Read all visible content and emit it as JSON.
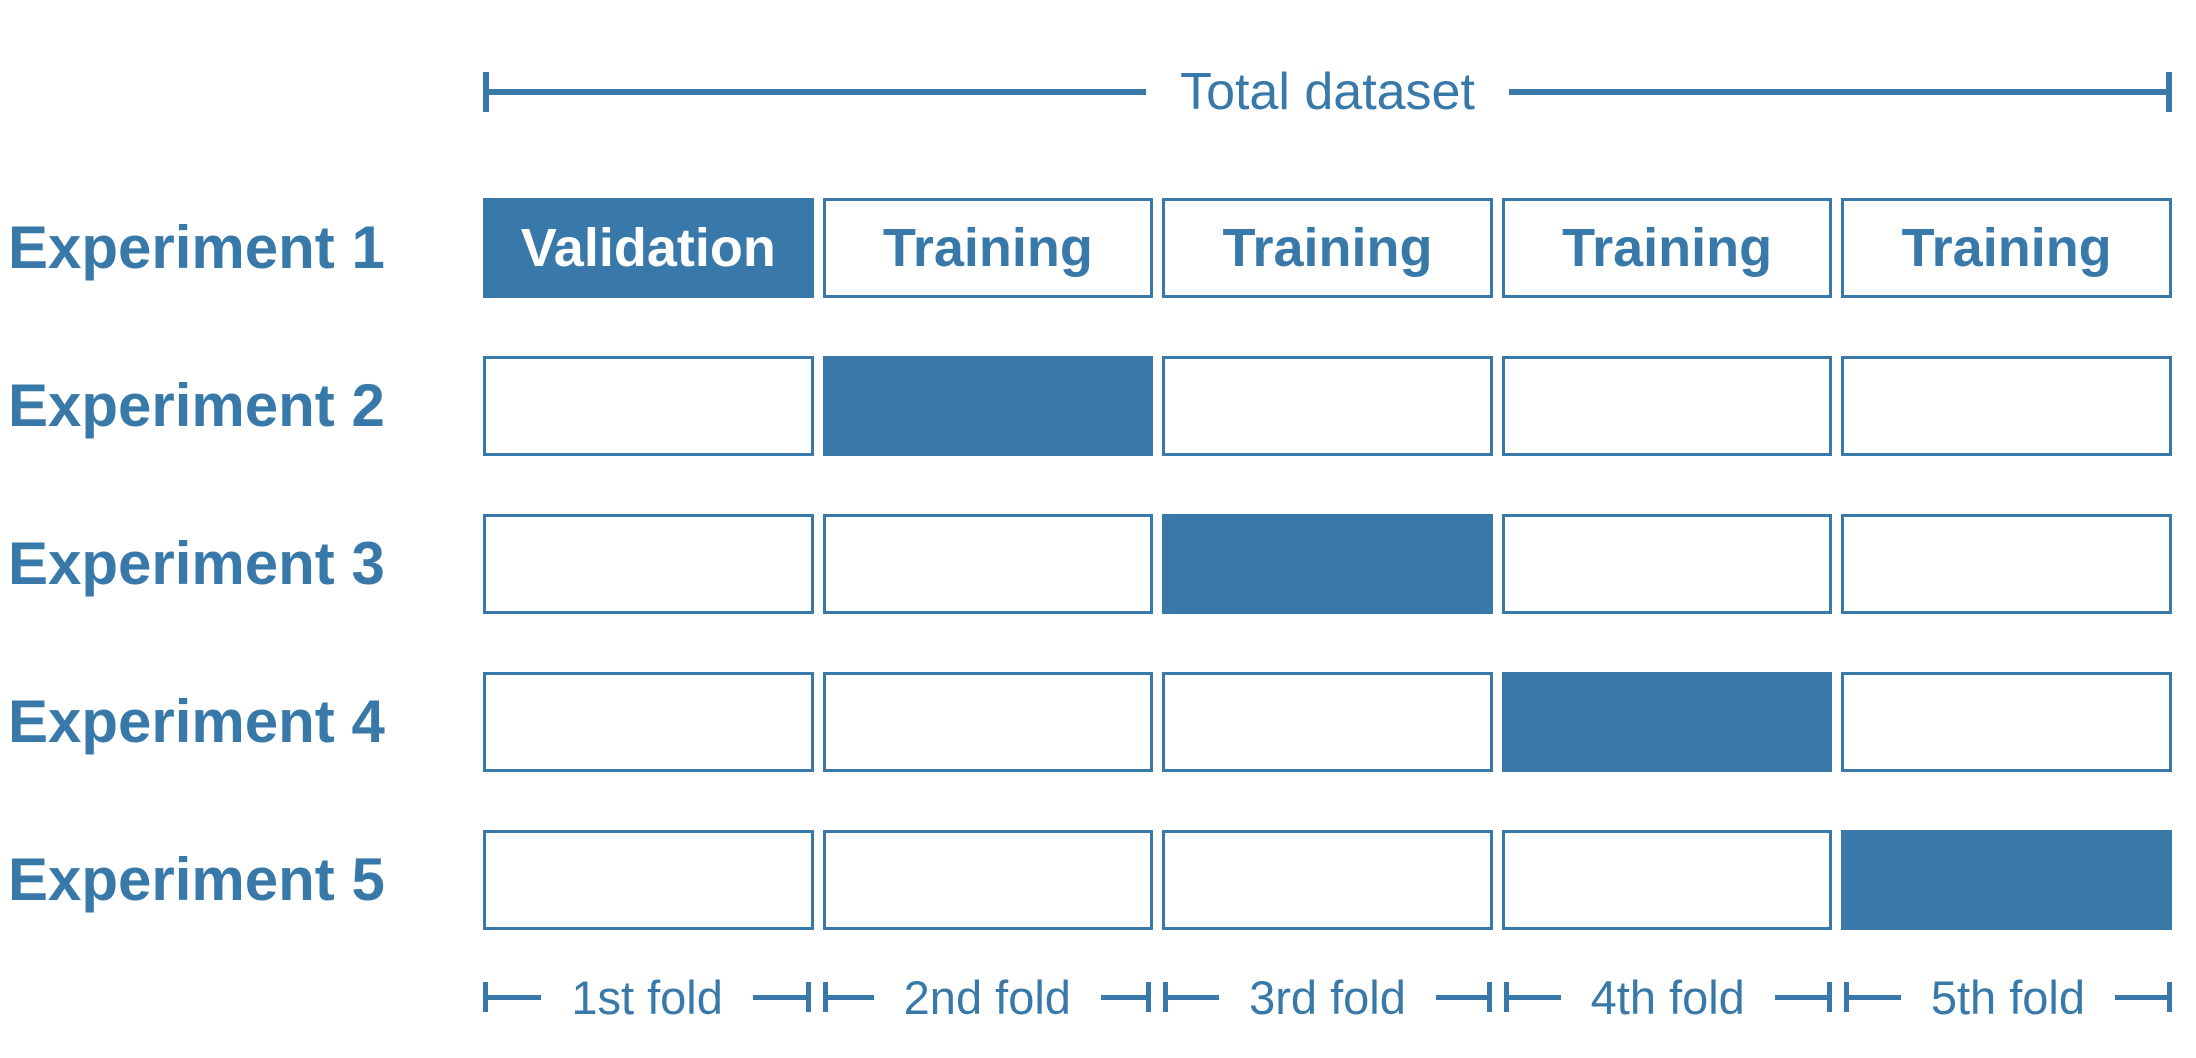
{
  "palette": {
    "accent": "#3879AA",
    "background": "#FFFFFF",
    "text_on_fill": "#FFFFFF"
  },
  "header_bracket": {
    "label": "Total dataset"
  },
  "experiments": [
    {
      "label": "Experiment 1",
      "validation_fold_index": 0,
      "cells": [
        {
          "text": "Validation",
          "filled": true
        },
        {
          "text": "Training",
          "filled": false
        },
        {
          "text": "Training",
          "filled": false
        },
        {
          "text": "Training",
          "filled": false
        },
        {
          "text": "Training",
          "filled": false
        }
      ]
    },
    {
      "label": "Experiment 2",
      "validation_fold_index": 1,
      "cells": [
        {
          "text": "",
          "filled": false
        },
        {
          "text": "",
          "filled": true
        },
        {
          "text": "",
          "filled": false
        },
        {
          "text": "",
          "filled": false
        },
        {
          "text": "",
          "filled": false
        }
      ]
    },
    {
      "label": "Experiment 3",
      "validation_fold_index": 2,
      "cells": [
        {
          "text": "",
          "filled": false
        },
        {
          "text": "",
          "filled": false
        },
        {
          "text": "",
          "filled": true
        },
        {
          "text": "",
          "filled": false
        },
        {
          "text": "",
          "filled": false
        }
      ]
    },
    {
      "label": "Experiment 4",
      "validation_fold_index": 3,
      "cells": [
        {
          "text": "",
          "filled": false
        },
        {
          "text": "",
          "filled": false
        },
        {
          "text": "",
          "filled": false
        },
        {
          "text": "",
          "filled": true
        },
        {
          "text": "",
          "filled": false
        }
      ]
    },
    {
      "label": "Experiment 5",
      "validation_fold_index": 4,
      "cells": [
        {
          "text": "",
          "filled": false
        },
        {
          "text": "",
          "filled": false
        },
        {
          "text": "",
          "filled": false
        },
        {
          "text": "",
          "filled": false
        },
        {
          "text": "",
          "filled": true
        }
      ]
    }
  ],
  "fold_labels": [
    "1st fold",
    "2nd fold",
    "3rd fold",
    "4th fold",
    "5th fold"
  ]
}
